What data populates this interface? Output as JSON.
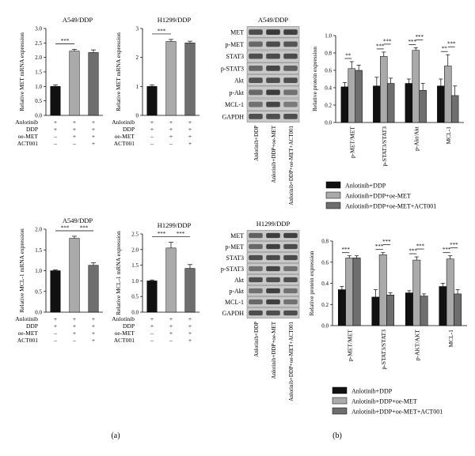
{
  "panel_labels": [
    "(a)",
    "(b)"
  ],
  "chart_data": [
    {
      "id": "a1",
      "type": "bar",
      "title": "A549/DDP",
      "ylabel": "Relative MET mRNA expression",
      "ylim": [
        0,
        3
      ],
      "yticks": [
        0.0,
        0.5,
        1.0,
        1.5,
        2.0,
        2.5,
        3.0
      ],
      "ytick_decimals": 1,
      "values": [
        1.0,
        2.22,
        2.17
      ],
      "errors": [
        0.05,
        0.06,
        0.09
      ],
      "sig": [
        {
          "from": 0,
          "to": 1,
          "label": "***"
        }
      ],
      "conditions": [
        {
          "label": "Anlotinib",
          "signs": [
            "+",
            "+",
            "+"
          ]
        },
        {
          "label": "DDP",
          "signs": [
            "+",
            "+",
            "+"
          ]
        },
        {
          "label": "oe-MET",
          "signs": [
            "–",
            "+",
            "+"
          ]
        },
        {
          "label": "ACT001",
          "signs": [
            "–",
            "–",
            "+"
          ]
        }
      ]
    },
    {
      "id": "a2",
      "type": "bar",
      "title": "H1299/DDP",
      "ylabel": "Relative MET mRNA expression",
      "ylim": [
        0,
        3
      ],
      "yticks": [
        0,
        1,
        2,
        3
      ],
      "ytick_decimals": 0,
      "values": [
        1.0,
        2.55,
        2.5
      ],
      "errors": [
        0.05,
        0.07,
        0.06
      ],
      "sig": [
        {
          "from": 0,
          "to": 1,
          "label": "***"
        }
      ],
      "conditions": [
        {
          "label": "Anlotinib",
          "signs": [
            "+",
            "+",
            "+"
          ]
        },
        {
          "label": "DDP",
          "signs": [
            "+",
            "+",
            "+"
          ]
        },
        {
          "label": "oe-MET",
          "signs": [
            "–",
            "+",
            "+"
          ]
        },
        {
          "label": "ACT001",
          "signs": [
            "–",
            "–",
            "+"
          ]
        }
      ]
    },
    {
      "id": "a3",
      "type": "bar",
      "title": "A549/DDP",
      "ylabel": "Relative MCL-1 mRNA expression",
      "ylim": [
        0,
        2
      ],
      "yticks": [
        0.0,
        0.5,
        1.0,
        1.5,
        2.0
      ],
      "ytick_decimals": 1,
      "values": [
        1.0,
        1.78,
        1.13
      ],
      "errors": [
        0.02,
        0.05,
        0.06
      ],
      "sig": [
        {
          "from": 0,
          "to": 1,
          "label": "***"
        },
        {
          "from": 1,
          "to": 2,
          "label": "***"
        }
      ],
      "conditions": [
        {
          "label": "Anlotinib",
          "signs": [
            "+",
            "+",
            "+"
          ]
        },
        {
          "label": "DDP",
          "signs": [
            "+",
            "+",
            "+"
          ]
        },
        {
          "label": "oe-MET",
          "signs": [
            "–",
            "+",
            "+"
          ]
        },
        {
          "label": "ACT001",
          "signs": [
            "–",
            "–",
            "+"
          ]
        }
      ]
    },
    {
      "id": "a4",
      "type": "bar",
      "title": "H1299/DDP",
      "ylabel": "Relative MCL-1 mRNA expression",
      "ylim": [
        0,
        2.5
      ],
      "yticks": [
        0.0,
        0.5,
        1.0,
        1.5,
        2.0,
        2.5
      ],
      "ytick_decimals": 1,
      "values": [
        1.0,
        2.05,
        1.4
      ],
      "errors": [
        0.03,
        0.18,
        0.12
      ],
      "sig": [
        {
          "from": 0,
          "to": 1,
          "label": "***"
        },
        {
          "from": 1,
          "to": 2,
          "label": "***"
        }
      ],
      "conditions": [
        {
          "label": "Anlotinib",
          "signs": [
            "+",
            "+",
            "+"
          ]
        },
        {
          "label": "DDP",
          "signs": [
            "+",
            "+",
            "+"
          ]
        },
        {
          "label": "oe-MET",
          "signs": [
            "–",
            "+",
            "+"
          ]
        },
        {
          "label": "ACT001",
          "signs": [
            "–",
            "–",
            "+"
          ]
        }
      ]
    },
    {
      "id": "b1",
      "type": "bar",
      "ylabel": "Relative protein expression",
      "ylim": [
        0,
        1.0
      ],
      "yticks": [
        0.0,
        0.2,
        0.4,
        0.6,
        0.8,
        1.0
      ],
      "ytick_decimals": 1,
      "categories": [
        "p-MET/MET",
        "p-STAT3/STAT3",
        "p-Akt/Akt",
        "MCL-1"
      ],
      "series": [
        {
          "name": "Anlotinib+DDP",
          "values": [
            0.41,
            0.42,
            0.45,
            0.42
          ],
          "errors": [
            0.05,
            0.1,
            0.05,
            0.08
          ]
        },
        {
          "name": "Anlotinib+DDP+oe-MET",
          "values": [
            0.62,
            0.76,
            0.83,
            0.65
          ],
          "errors": [
            0.08,
            0.05,
            0.03,
            0.13
          ]
        },
        {
          "name": "Anlotinib+DDP+oe-MET+ACT001",
          "values": [
            0.6,
            0.45,
            0.37,
            0.31
          ],
          "errors": [
            0.06,
            0.06,
            0.08,
            0.11
          ]
        }
      ],
      "sig": [
        {
          "group": 0,
          "from": 0,
          "to": 1,
          "label": "**"
        },
        {
          "group": 1,
          "from": 0,
          "to": 1,
          "label": "***"
        },
        {
          "group": 1,
          "from": 1,
          "to": 2,
          "label": "***"
        },
        {
          "group": 2,
          "from": 0,
          "to": 1,
          "label": "***"
        },
        {
          "group": 2,
          "from": 1,
          "to": 2,
          "label": "***"
        },
        {
          "group": 3,
          "from": 0,
          "to": 1,
          "label": "**"
        },
        {
          "group": 3,
          "from": 1,
          "to": 2,
          "label": "***"
        }
      ]
    },
    {
      "id": "b2",
      "type": "bar",
      "ylabel": "Relative protein expression",
      "ylim": [
        0,
        0.8
      ],
      "yticks": [
        0.0,
        0.2,
        0.4,
        0.6,
        0.8
      ],
      "ytick_decimals": 1,
      "categories": [
        "p-MET/MET",
        "p-STAT3/STAT3",
        "p-AKT/AKT",
        "MCL-1"
      ],
      "series": [
        {
          "name": "Anlotinib+DDP",
          "values": [
            0.34,
            0.27,
            0.31,
            0.37
          ],
          "errors": [
            0.03,
            0.07,
            0.02,
            0.03
          ]
        },
        {
          "name": "Anlotinib+DDP+oe-MET",
          "values": [
            0.64,
            0.67,
            0.62,
            0.63
          ],
          "errors": [
            0.02,
            0.02,
            0.03,
            0.03
          ]
        },
        {
          "name": "Anlotinib+DDP+oe-MET+ACT001",
          "values": [
            0.64,
            0.29,
            0.28,
            0.3
          ],
          "errors": [
            0.02,
            0.02,
            0.02,
            0.04
          ]
        }
      ],
      "sig": [
        {
          "group": 0,
          "from": 0,
          "to": 1,
          "label": "***"
        },
        {
          "group": 1,
          "from": 0,
          "to": 1,
          "label": "***"
        },
        {
          "group": 1,
          "from": 1,
          "to": 2,
          "label": "***"
        },
        {
          "group": 2,
          "from": 0,
          "to": 1,
          "label": "***"
        },
        {
          "group": 2,
          "from": 1,
          "to": 2,
          "label": "***"
        },
        {
          "group": 3,
          "from": 0,
          "to": 1,
          "label": "***"
        },
        {
          "group": 3,
          "from": 1,
          "to": 2,
          "label": "***"
        }
      ]
    }
  ],
  "blots": [
    {
      "id": "blot1",
      "title": "A549/DDP",
      "rows": [
        "MET",
        "p-MET",
        "STAT3",
        "p-STAT3",
        "Akt",
        "p-Akt",
        "MCL-1",
        "GAPDH"
      ],
      "intensity": [
        [
          0.7,
          0.82,
          0.78
        ],
        [
          0.55,
          0.72,
          0.66
        ],
        [
          0.7,
          0.72,
          0.72
        ],
        [
          0.55,
          0.75,
          0.6
        ],
        [
          0.68,
          0.7,
          0.7
        ],
        [
          0.55,
          0.8,
          0.5
        ],
        [
          0.5,
          0.75,
          0.45
        ],
        [
          0.7,
          0.7,
          0.7
        ]
      ],
      "lanes": [
        "Anlotinib+DDP",
        "Anlotinib+DDP+oe-MET",
        "Anlotinib+DDP+oe-MET+ACT001"
      ]
    },
    {
      "id": "blot2",
      "title": "H1299/DDP",
      "rows": [
        "MET",
        "p-MET",
        "STAT3",
        "p-STAT3",
        "Akt",
        "p-Akt",
        "MCL-1",
        "GAPDH"
      ],
      "intensity": [
        [
          0.6,
          0.8,
          0.78
        ],
        [
          0.55,
          0.78,
          0.72
        ],
        [
          0.7,
          0.72,
          0.72
        ],
        [
          0.5,
          0.75,
          0.5
        ],
        [
          0.7,
          0.7,
          0.7
        ],
        [
          0.5,
          0.78,
          0.5
        ],
        [
          0.55,
          0.78,
          0.5
        ],
        [
          0.7,
          0.7,
          0.7
        ]
      ],
      "lanes": [
        "Anlotinib+DDP",
        "Anlotinib+DDP+oe-MET",
        "Anlotinib+DDP+oe-MET+ACT001"
      ]
    }
  ],
  "colors": {
    "series": [
      "#111111",
      "#aaaaaa",
      "#6e6e6e"
    ],
    "blot_bg": "#c8c8c8",
    "band": "#1a1a1a"
  }
}
